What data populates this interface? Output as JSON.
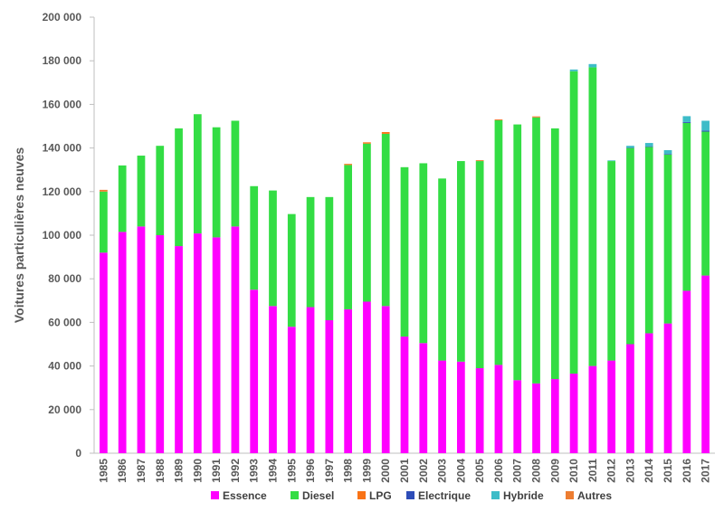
{
  "chart_data": {
    "type": "bar",
    "stacked": true,
    "ylabel": "Voitures particulières neuves",
    "xlabel": "",
    "ylim": [
      0,
      200000
    ],
    "yticks": [
      0,
      20000,
      40000,
      60000,
      80000,
      100000,
      120000,
      140000,
      160000,
      180000,
      200000
    ],
    "ytick_labels": [
      "0",
      "20 000",
      "40 000",
      "60 000",
      "80 000",
      "100 000",
      "120 000",
      "140 000",
      "160 000",
      "180 000",
      "200 000"
    ],
    "grid": false,
    "legend_position": "bottom",
    "categories": [
      "1985",
      "1986",
      "1987",
      "1988",
      "1989",
      "1990",
      "1991",
      "1992",
      "1993",
      "1994",
      "1995",
      "1996",
      "1997",
      "1998",
      "1999",
      "2000",
      "2001",
      "2002",
      "2003",
      "2004",
      "2005",
      "2006",
      "2007",
      "2008",
      "2009",
      "2010",
      "2011",
      "2012",
      "2013",
      "2014",
      "2015",
      "2016",
      "2017"
    ],
    "series": [
      {
        "name": "Essence",
        "color": "#FF00FF",
        "values": [
          92000,
          101500,
          104000,
          100000,
          95000,
          100800,
          99000,
          104000,
          75000,
          67500,
          58000,
          67000,
          61000,
          66000,
          69500,
          67500,
          53500,
          50500,
          42500,
          42000,
          39000,
          40500,
          33500,
          32000,
          34000,
          36500,
          40000,
          42500,
          50000,
          55000,
          59500,
          74500,
          81500
        ]
      },
      {
        "name": "Diesel",
        "color": "#33DD44",
        "values": [
          28000,
          30500,
          32500,
          41000,
          54000,
          54700,
          50500,
          48500,
          47500,
          53000,
          51700,
          50500,
          56500,
          66200,
          72500,
          79000,
          77700,
          82500,
          83500,
          92000,
          95000,
          112200,
          117300,
          122000,
          115000,
          138700,
          137000,
          91500,
          90000,
          85500,
          77500,
          77000,
          66000
        ]
      },
      {
        "name": "LPG",
        "color": "#F97316",
        "values": [
          0,
          0,
          0,
          0,
          0,
          0,
          0,
          0,
          0,
          0,
          0,
          0,
          0,
          500,
          600,
          800,
          0,
          0,
          0,
          0,
          0,
          0,
          0,
          0,
          0,
          0,
          0,
          0,
          0,
          0,
          0,
          0,
          0
        ]
      },
      {
        "name": "Electrique",
        "color": "#2E4DB8",
        "values": [
          0,
          0,
          0,
          0,
          0,
          0,
          0,
          0,
          0,
          0,
          0,
          0,
          0,
          0,
          0,
          0,
          0,
          0,
          0,
          0,
          0,
          0,
          0,
          0,
          0,
          0,
          0,
          0,
          200,
          300,
          300,
          400,
          500
        ]
      },
      {
        "name": "Hybride",
        "color": "#3DBCC8",
        "values": [
          0,
          0,
          0,
          0,
          0,
          0,
          0,
          0,
          0,
          0,
          0,
          0,
          0,
          0,
          0,
          0,
          0,
          0,
          0,
          0,
          0,
          0,
          0,
          0,
          0,
          800,
          1500,
          300,
          800,
          1500,
          1700,
          2700,
          4500
        ]
      },
      {
        "name": "Autres",
        "color": "#ED7D31",
        "values": [
          800,
          0,
          0,
          0,
          0,
          0,
          0,
          0,
          0,
          0,
          0,
          0,
          0,
          0,
          0,
          0,
          0,
          0,
          0,
          0,
          400,
          400,
          0,
          500,
          0,
          0,
          0,
          0,
          0,
          0,
          0,
          0,
          0
        ]
      }
    ],
    "colors": {
      "axis": "#BFBFBF",
      "text": "#595959"
    }
  }
}
